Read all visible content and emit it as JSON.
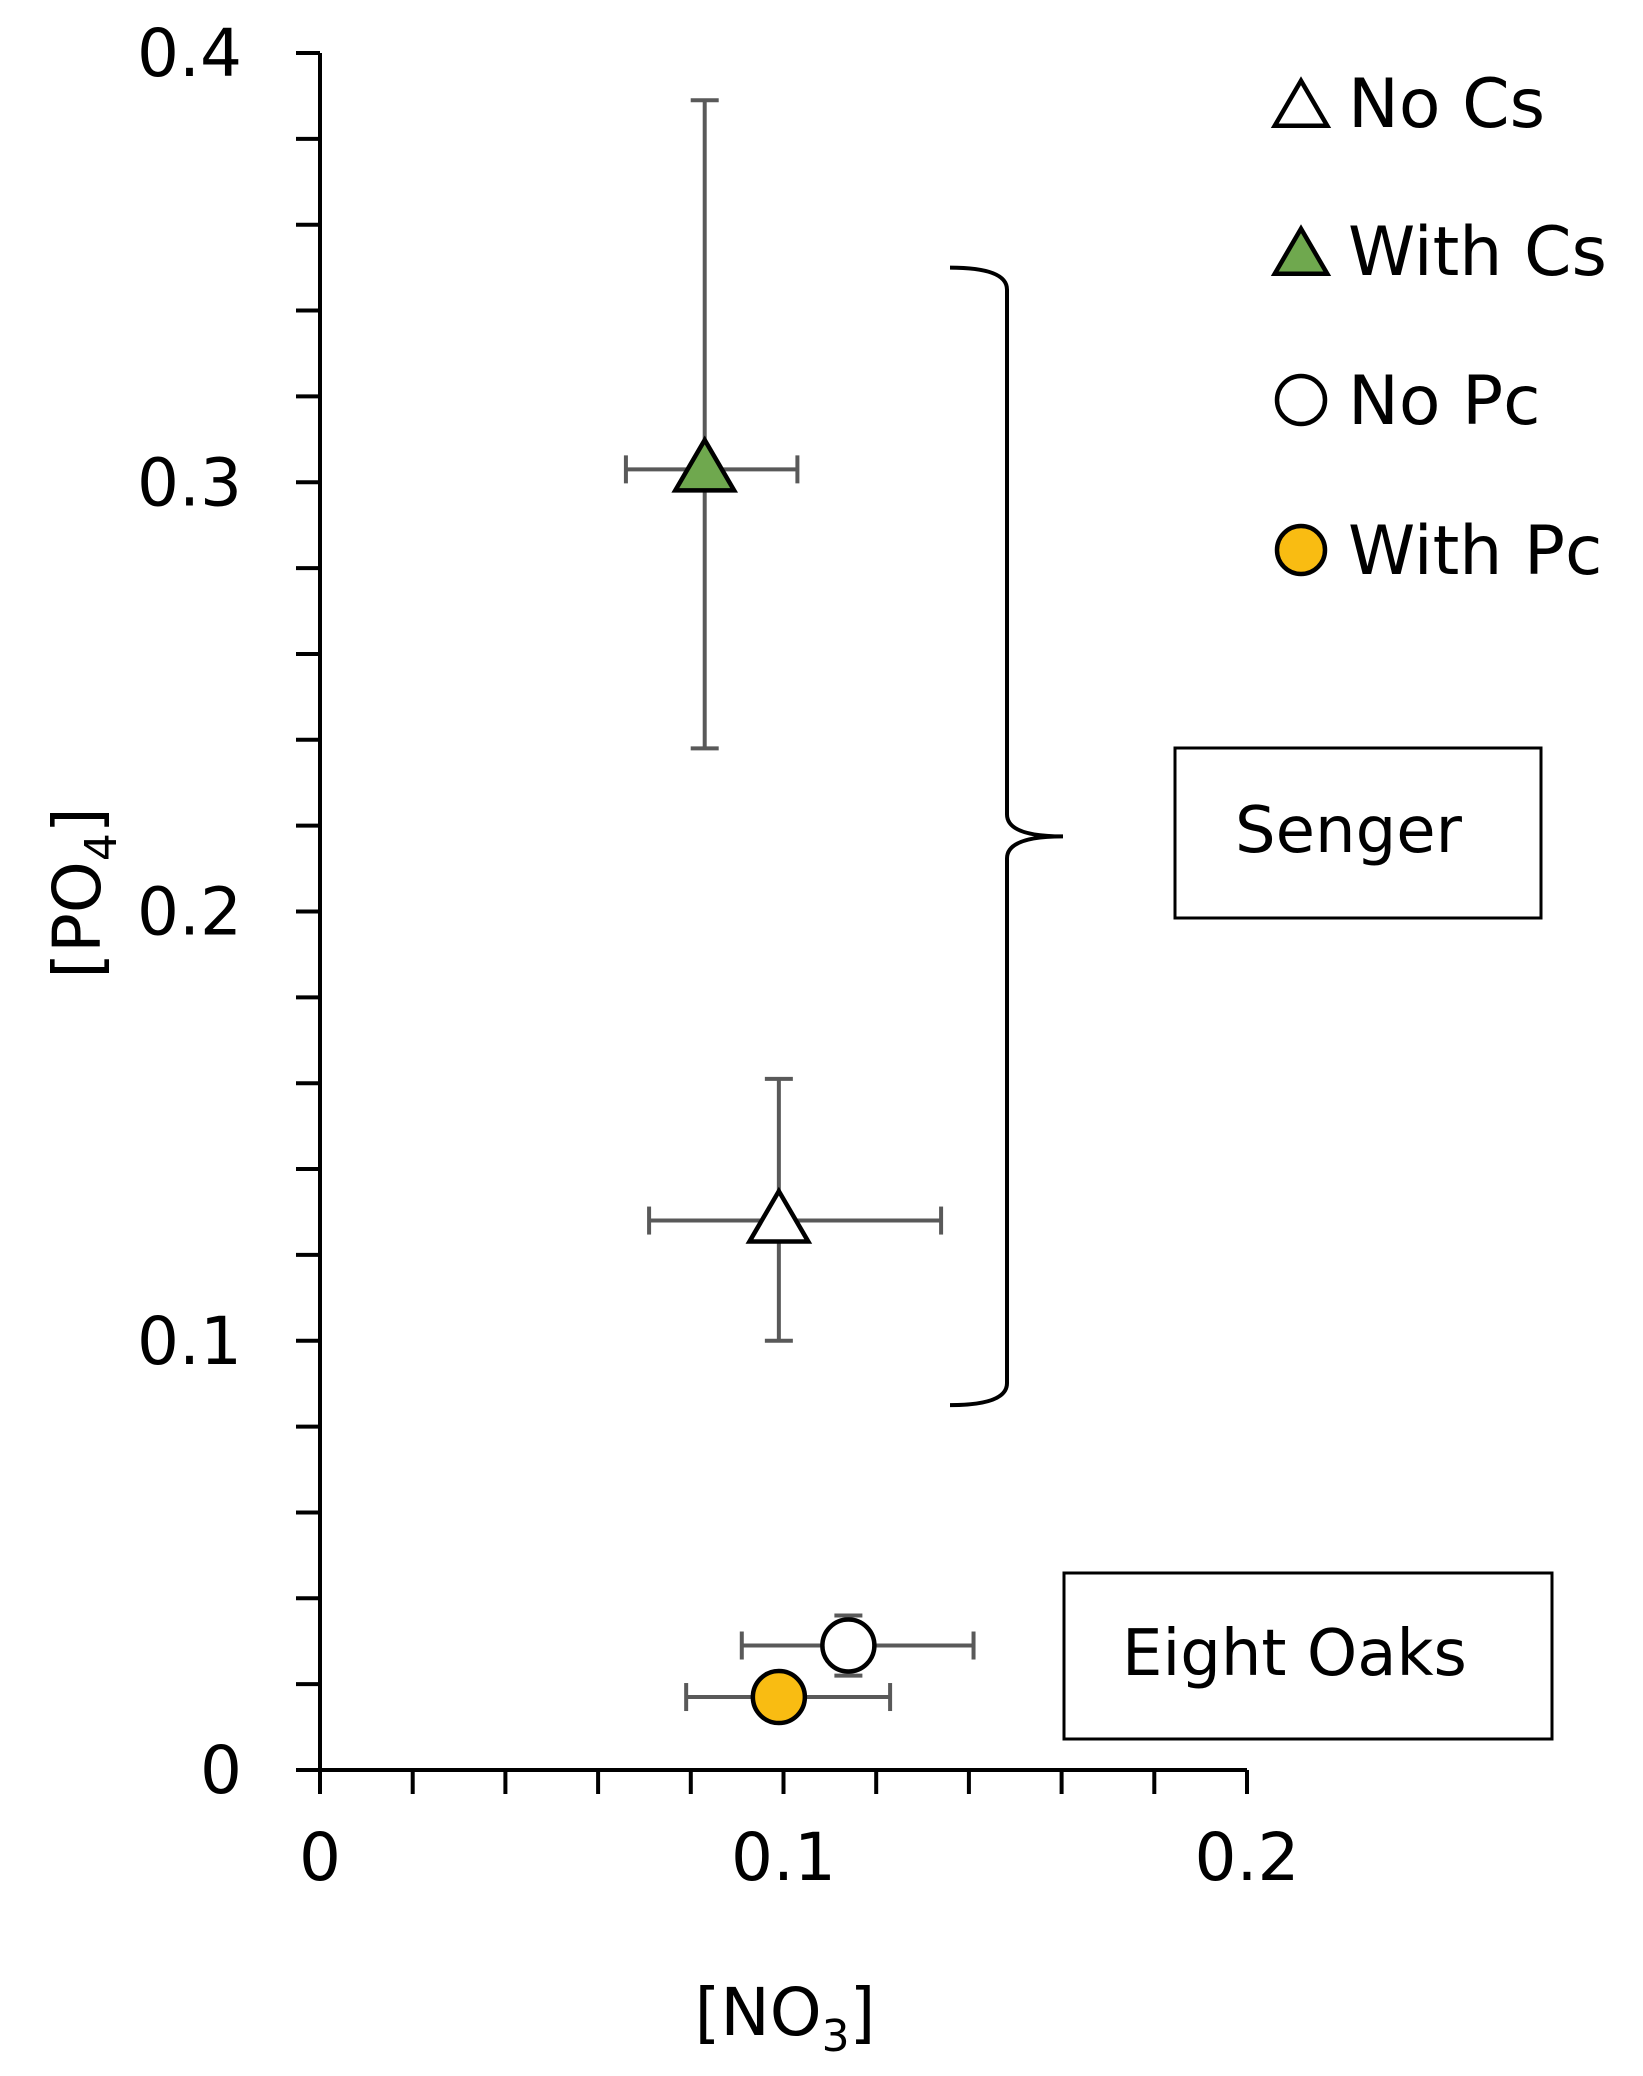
{
  "chart_data": {
    "type": "scatter",
    "xlabel": {
      "text": "[NO",
      "sub": "3",
      "close": "]"
    },
    "ylabel": {
      "text": "[PO",
      "sub": "4",
      "close": "]"
    },
    "xlim": [
      0,
      0.2
    ],
    "ylim": [
      0,
      0.4
    ],
    "x_ticks": [
      {
        "value": 0,
        "label": "0"
      },
      {
        "value": 0.1,
        "label": "0.1"
      },
      {
        "value": 0.2,
        "label": "0.2"
      }
    ],
    "y_ticks": [
      {
        "value": 0,
        "label": "0"
      },
      {
        "value": 0.1,
        "label": "0.1"
      },
      {
        "value": 0.2,
        "label": "0.2"
      },
      {
        "value": 0.3,
        "label": "0.3"
      },
      {
        "value": 0.4,
        "label": "0.4"
      }
    ],
    "x_minor_step": 0.02,
    "y_minor_step": 0.02,
    "grid": false,
    "legend_position": "top-right",
    "series": [
      {
        "name": "No Cs",
        "marker": "triangle",
        "fill": "#ffffff",
        "x": 0.099,
        "y": 0.128,
        "x_err": [
          0.071,
          0.134
        ],
        "y_err": [
          0.1,
          0.161
        ]
      },
      {
        "name": "With Cs",
        "marker": "triangle",
        "fill": "#6fa84e",
        "x": 0.083,
        "y": 0.303,
        "x_err": [
          0.066,
          0.103
        ],
        "y_err": [
          0.238,
          0.389
        ]
      },
      {
        "name": "No Pc",
        "marker": "circle",
        "fill": "#ffffff",
        "x": 0.114,
        "y": 0.029,
        "x_err": [
          0.091,
          0.141
        ],
        "y_err": [
          0.022,
          0.036
        ]
      },
      {
        "name": "With Pc",
        "marker": "circle",
        "fill": "#f9bc12",
        "x": 0.099,
        "y": 0.017,
        "x_err": [
          0.079,
          0.123
        ],
        "y_err": [
          0.017,
          0.017
        ]
      }
    ],
    "annotations": [
      {
        "label": "Senger",
        "bracket_y": [
          0.085,
          0.35
        ]
      },
      {
        "label": "Eight Oaks"
      }
    ],
    "colors": {
      "axis": "#000000",
      "error_bar": "#595959",
      "marker_stroke": "#000000"
    }
  }
}
